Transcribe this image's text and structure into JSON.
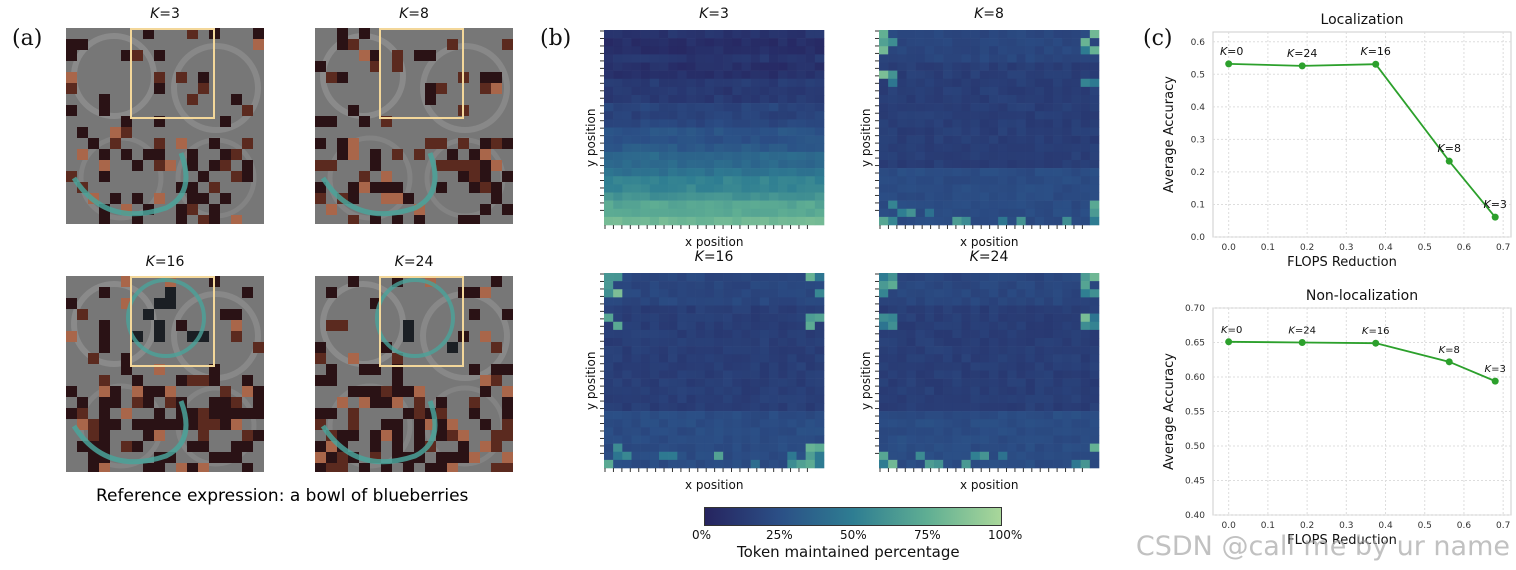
{
  "panel_labels": {
    "a": "(a)",
    "b": "(b)",
    "c": "(c)"
  },
  "k_italic": "K",
  "panel_a": {
    "titles": [
      "=3",
      "=8",
      "=16",
      "=24"
    ],
    "caption": "Reference expression: a bowl of blueberries",
    "highlight_color": "#f3d79a"
  },
  "panel_b": {
    "titles": [
      "=3",
      "=8",
      "=16",
      "=24"
    ],
    "xlabel": "x position",
    "ylabel": "y position",
    "colorbar": {
      "ticks": [
        "0%",
        "25%",
        "50%",
        "75%",
        "100%"
      ],
      "label": "Token maintained percentage",
      "colors": [
        "#26245f",
        "#2b4f86",
        "#2e7d92",
        "#5fae93",
        "#a9d79a"
      ]
    }
  },
  "chart_data": [
    {
      "type": "line",
      "title": "Localization",
      "xlabel": "FLOPS Reduction",
      "ylabel": "Average Accuracy",
      "xlim": [
        -0.04,
        0.72
      ],
      "ylim": [
        0.0,
        0.63
      ],
      "xticks": [
        "0.0",
        "0.1",
        "0.2",
        "0.3",
        "0.4",
        "0.5",
        "0.6",
        "0.7"
      ],
      "yticks": [
        "0.0",
        "0.1",
        "0.2",
        "0.3",
        "0.4",
        "0.5",
        "0.6"
      ],
      "color": "#2ca02c",
      "series": [
        {
          "name": "Localization",
          "x": [
            0.0,
            0.1875,
            0.375,
            0.5625,
            0.6797
          ],
          "y": [
            0.532,
            0.526,
            0.531,
            0.233,
            0.061
          ]
        }
      ],
      "point_labels": [
        "=0",
        "=24",
        "=16",
        "=8",
        "=3"
      ]
    },
    {
      "type": "line",
      "title": "Non-localization",
      "xlabel": "FLOPS Reduction",
      "ylabel": "Average Accuracy",
      "xlim": [
        -0.04,
        0.72
      ],
      "ylim": [
        0.4,
        0.7
      ],
      "xticks": [
        "0.0",
        "0.1",
        "0.2",
        "0.3",
        "0.4",
        "0.5",
        "0.6",
        "0.7"
      ],
      "yticks": [
        "0.40",
        "0.45",
        "0.50",
        "0.55",
        "0.60",
        "0.65",
        "0.70"
      ],
      "color": "#2ca02c",
      "series": [
        {
          "name": "Non-localization",
          "x": [
            0.0,
            0.1875,
            0.375,
            0.5625,
            0.6797
          ],
          "y": [
            0.651,
            0.65,
            0.649,
            0.622,
            0.594
          ]
        }
      ],
      "point_labels": [
        "=0",
        "=24",
        "=16",
        "=8",
        "=3"
      ]
    }
  ],
  "watermark": "CSDN @call me by ur name"
}
